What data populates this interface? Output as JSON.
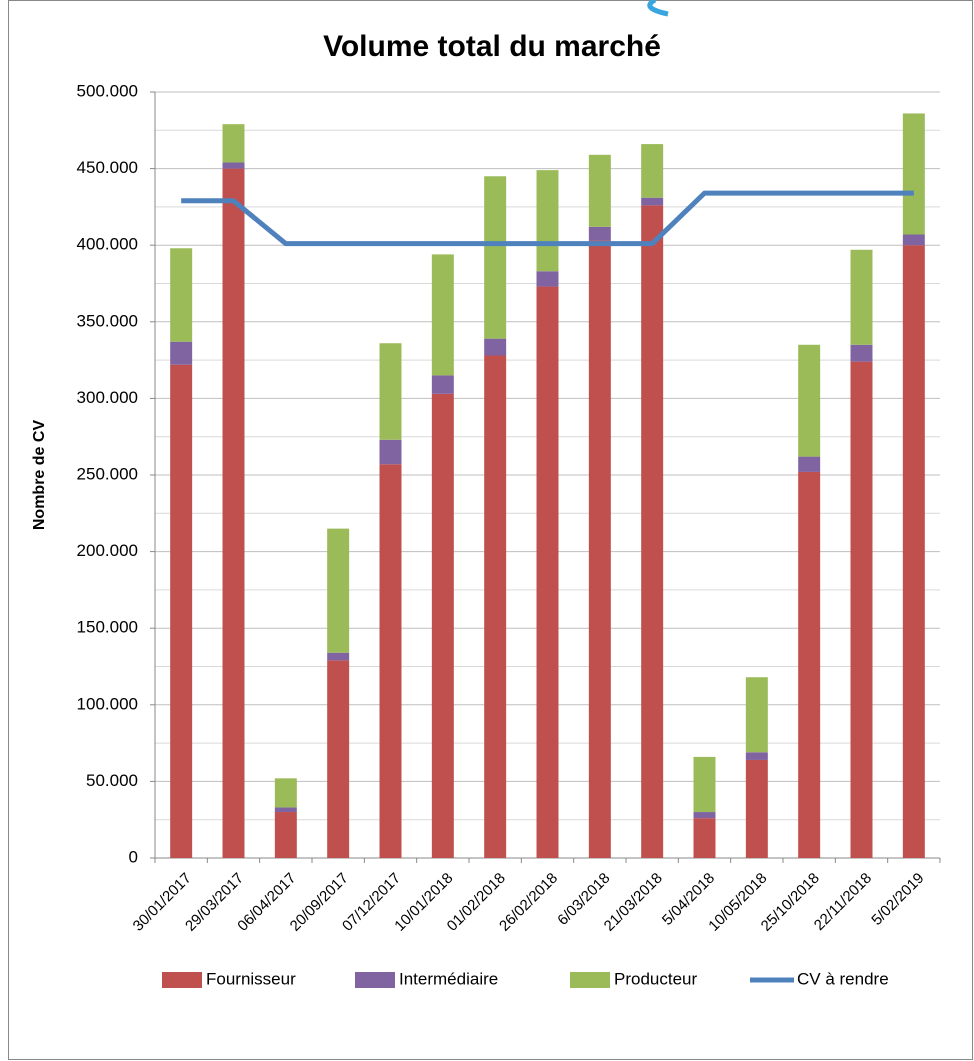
{
  "chart_data": {
    "type": "bar",
    "stacked": true,
    "title": "Volume total du marché",
    "y_label": "Nombre de CV",
    "categories": [
      "30/01/2017",
      "29/03/2017",
      "06/04/2017",
      "20/09/2017",
      "07/12/2017",
      "10/01/2018",
      "01/02/2018",
      "26/02/2018",
      "6/03/2018",
      "21/03/2018",
      "5/04/2018",
      "10/05/2018",
      "25/10/2018",
      "22/11/2018",
      "5/02/2019"
    ],
    "series": [
      {
        "name": "Fournisseur",
        "type": "bar",
        "color": "#c0504d",
        "values": [
          322000,
          450000,
          30000,
          129000,
          257000,
          303000,
          328000,
          373000,
          403000,
          426000,
          26000,
          64000,
          252000,
          324000,
          400000
        ]
      },
      {
        "name": "Intermédiaire",
        "type": "bar",
        "color": "#8064a2",
        "values": [
          15000,
          4000,
          3000,
          5000,
          16000,
          12000,
          11000,
          10000,
          9000,
          5000,
          4000,
          5000,
          10000,
          11000,
          7000
        ]
      },
      {
        "name": "Producteur",
        "type": "bar",
        "color": "#9bbb59",
        "values": [
          61000,
          25000,
          19000,
          81000,
          63000,
          79000,
          106000,
          66000,
          47000,
          35000,
          36000,
          49000,
          73000,
          62000,
          79000
        ]
      },
      {
        "name": "CV à rendre",
        "type": "line",
        "color": "#4f81bd",
        "values": [
          429000,
          429000,
          401000,
          401000,
          401000,
          401000,
          401000,
          401000,
          401000,
          401000,
          434000,
          434000,
          434000,
          434000,
          434000
        ]
      }
    ],
    "ylim": [
      0,
      500000
    ],
    "yticks": [
      0,
      {
        "value": 50000,
        "label": "50.000"
      },
      {
        "value": 100000,
        "label": "100.000"
      },
      {
        "value": 150000,
        "label": "150.000"
      },
      {
        "value": 200000,
        "label": "200.000"
      },
      {
        "value": 250000,
        "label": "250.000"
      },
      {
        "value": 300000,
        "label": "300.000"
      },
      {
        "value": 350000,
        "label": "350.000"
      },
      {
        "value": 400000,
        "label": "400.000"
      },
      {
        "value": 450000,
        "label": "450.000"
      },
      {
        "value": 500000,
        "label": "500.000"
      }
    ],
    "minor_yticks": [
      25000,
      75000,
      125000,
      175000,
      225000,
      275000,
      325000,
      375000,
      425000,
      475000
    ],
    "grid": true,
    "legend": "bottom"
  }
}
